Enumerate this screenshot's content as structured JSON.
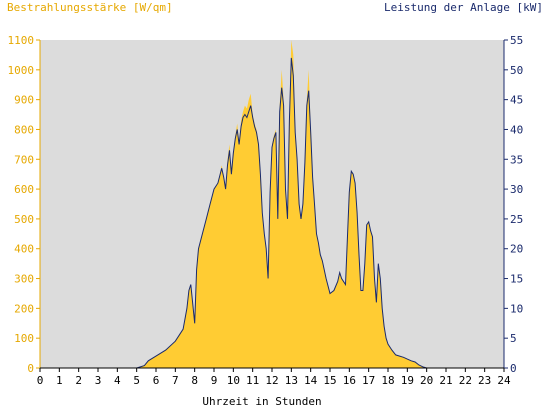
{
  "chart_data": {
    "type": "area",
    "left_axis_title": "Bestrahlungsstärke [W/qm]",
    "right_axis_title": "Leistung der Anlage [kW]",
    "xlabel": "Uhrzeit in Stunden",
    "x_ticks": [
      "0",
      "1",
      "2",
      "3",
      "4",
      "5",
      "6",
      "7",
      "8",
      "9",
      "10",
      "11",
      "12",
      "13",
      "14",
      "15",
      "16",
      "17",
      "18",
      "19",
      "20",
      "21",
      "22",
      "23",
      "24"
    ],
    "left_ticks": [
      "0",
      "100",
      "200",
      "300",
      "400",
      "500",
      "600",
      "700",
      "800",
      "900",
      "1000",
      "1100"
    ],
    "right_ticks": [
      "0",
      "5",
      "10",
      "15",
      "20",
      "25",
      "30",
      "35",
      "40",
      "45",
      "50",
      "55"
    ],
    "xlim": [
      0,
      24
    ],
    "ylim_left": [
      0,
      1100
    ],
    "ylim_right": [
      0,
      55
    ],
    "grid": false,
    "colors": {
      "plot_bg": "#dcdcdc",
      "irradiance": "#ffcc33",
      "power": "#1a2a6c",
      "left_axis_text": "#e6a800",
      "right_axis_text": "#1a2a6c"
    },
    "series": [
      {
        "name": "Bestrahlungsstärke [W/qm]",
        "axis": "left",
        "x": [
          0,
          5.0,
          5.4,
          5.6,
          6.0,
          6.5,
          7.0,
          7.2,
          7.4,
          7.6,
          7.7,
          7.8,
          8.0,
          8.1,
          8.2,
          8.4,
          8.6,
          8.8,
          9.0,
          9.2,
          9.4,
          9.5,
          9.6,
          9.7,
          9.8,
          9.9,
          10.0,
          10.1,
          10.2,
          10.3,
          10.4,
          10.5,
          10.6,
          10.7,
          10.8,
          10.9,
          11.0,
          11.1,
          11.2,
          11.3,
          11.4,
          11.5,
          11.6,
          11.7,
          11.8,
          11.9,
          12.0,
          12.1,
          12.2,
          12.3,
          12.4,
          12.5,
          12.6,
          12.7,
          12.8,
          12.9,
          13.0,
          13.1,
          13.2,
          13.3,
          13.4,
          13.5,
          13.6,
          13.7,
          13.8,
          13.9,
          14.0,
          14.1,
          14.2,
          14.3,
          14.4,
          14.5,
          14.6,
          14.8,
          15.0,
          15.2,
          15.4,
          15.5,
          15.6,
          15.8,
          16.0,
          16.1,
          16.2,
          16.3,
          16.4,
          16.5,
          16.6,
          16.7,
          16.8,
          16.9,
          17.0,
          17.1,
          17.2,
          17.3,
          17.4,
          17.5,
          17.6,
          17.7,
          17.8,
          17.9,
          18.0,
          18.2,
          18.4,
          18.6,
          18.8,
          19.0,
          19.2,
          19.4,
          19.6,
          19.8,
          20.0,
          24
        ],
        "values": [
          0,
          0,
          10,
          25,
          40,
          60,
          90,
          110,
          130,
          200,
          260,
          280,
          150,
          330,
          400,
          450,
          500,
          550,
          600,
          620,
          680,
          640,
          600,
          700,
          750,
          650,
          720,
          780,
          820,
          760,
          830,
          860,
          880,
          870,
          900,
          920,
          850,
          820,
          800,
          760,
          650,
          520,
          450,
          400,
          300,
          600,
          750,
          780,
          800,
          500,
          880,
          1000,
          900,
          600,
          500,
          850,
          1100,
          1050,
          800,
          700,
          550,
          500,
          550,
          700,
          900,
          1000,
          800,
          650,
          550,
          450,
          420,
          380,
          360,
          300,
          250,
          260,
          290,
          320,
          300,
          280,
          600,
          660,
          650,
          620,
          520,
          380,
          260,
          260,
          350,
          480,
          490,
          460,
          440,
          300,
          220,
          350,
          300,
          200,
          140,
          100,
          80,
          60,
          45,
          40,
          35,
          30,
          25,
          20,
          10,
          5,
          0,
          0
        ]
      },
      {
        "name": "Leistung der Anlage [kW]",
        "axis": "right",
        "x": [
          0,
          5.0,
          5.4,
          5.6,
          6.0,
          6.5,
          7.0,
          7.2,
          7.4,
          7.6,
          7.7,
          7.8,
          8.0,
          8.1,
          8.2,
          8.4,
          8.6,
          8.8,
          9.0,
          9.2,
          9.4,
          9.5,
          9.6,
          9.7,
          9.8,
          9.9,
          10.0,
          10.1,
          10.2,
          10.3,
          10.4,
          10.5,
          10.6,
          10.7,
          10.8,
          10.9,
          11.0,
          11.1,
          11.2,
          11.3,
          11.4,
          11.5,
          11.6,
          11.7,
          11.8,
          11.9,
          12.0,
          12.1,
          12.2,
          12.3,
          12.4,
          12.5,
          12.6,
          12.7,
          12.8,
          12.9,
          13.0,
          13.1,
          13.2,
          13.3,
          13.4,
          13.5,
          13.6,
          13.7,
          13.8,
          13.9,
          14.0,
          14.1,
          14.2,
          14.3,
          14.4,
          14.5,
          14.6,
          14.8,
          15.0,
          15.2,
          15.4,
          15.5,
          15.6,
          15.8,
          16.0,
          16.1,
          16.2,
          16.3,
          16.4,
          16.5,
          16.6,
          16.7,
          16.8,
          16.9,
          17.0,
          17.1,
          17.2,
          17.3,
          17.4,
          17.5,
          17.6,
          17.7,
          17.8,
          17.9,
          18.0,
          18.2,
          18.4,
          18.6,
          18.8,
          19.0,
          19.2,
          19.4,
          19.6,
          19.8,
          20.0,
          24
        ],
        "values": [
          0,
          0,
          0.4,
          1.2,
          2,
          3,
          4.5,
          5.5,
          6.5,
          10,
          13,
          14,
          7.5,
          16.5,
          20,
          22.5,
          25,
          27.5,
          30,
          31,
          33.5,
          32,
          30,
          34,
          36.5,
          32.5,
          36,
          38.5,
          40,
          37.5,
          40.5,
          42,
          42.5,
          42,
          43,
          44,
          42,
          40.5,
          39.5,
          37.5,
          32.5,
          26,
          22.5,
          20,
          15,
          29.5,
          37,
          38.5,
          39.5,
          25,
          43,
          47,
          44,
          30,
          25,
          41.5,
          52,
          49,
          39.5,
          35,
          27.5,
          25,
          27.5,
          34.5,
          44,
          46.5,
          39.5,
          32,
          27.5,
          22.5,
          21,
          19,
          18,
          15,
          12.5,
          13,
          14.5,
          16,
          15,
          14,
          29.5,
          33,
          32.5,
          31,
          26,
          19,
          13,
          13,
          17.5,
          24,
          24.5,
          23,
          22,
          15,
          11,
          17.5,
          15,
          10,
          7,
          5,
          4,
          3,
          2.2,
          2,
          1.8,
          1.5,
          1.2,
          1,
          0.5,
          0.2,
          0,
          0
        ]
      }
    ]
  }
}
